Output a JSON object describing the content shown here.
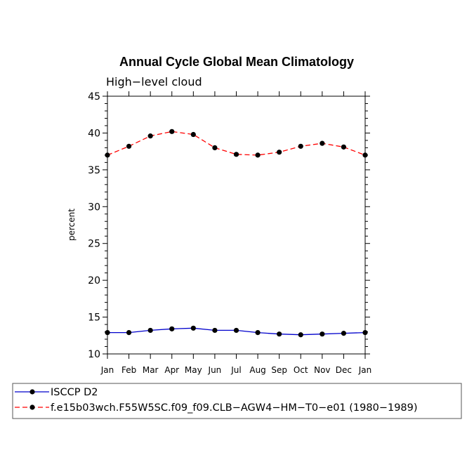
{
  "chart_data": {
    "type": "line",
    "title": "Annual Cycle Global Mean Climatology",
    "subtitle": "High−level cloud",
    "ylabel": "percent",
    "xlabel": "",
    "x": [
      "Jan",
      "Feb",
      "Mar",
      "Apr",
      "May",
      "Jun",
      "Jul",
      "Aug",
      "Sep",
      "Oct",
      "Nov",
      "Dec",
      "Jan"
    ],
    "ylim": [
      10,
      45
    ],
    "yticks": [
      10,
      15,
      20,
      25,
      30,
      35,
      40,
      45
    ],
    "grid": false,
    "legend_position": "bottom",
    "series": [
      {
        "name": "ISCCP D2",
        "color": "#0000cc",
        "line_style": "solid",
        "marker": "filled-circle",
        "values": [
          12.9,
          12.9,
          13.2,
          13.4,
          13.5,
          13.2,
          13.2,
          12.9,
          12.7,
          12.6,
          12.7,
          12.8,
          12.9
        ]
      },
      {
        "name": "f.e15b03wch.F55W5SC.f09_f09.CLB−AGW4−HM−T0−e01 (1980−1989)",
        "color": "#ff0000",
        "line_style": "dashed",
        "marker": "filled-circle",
        "values": [
          37.0,
          38.2,
          39.6,
          40.2,
          39.8,
          38.0,
          37.1,
          37.0,
          37.4,
          38.2,
          38.6,
          38.1,
          37.0
        ]
      }
    ]
  }
}
